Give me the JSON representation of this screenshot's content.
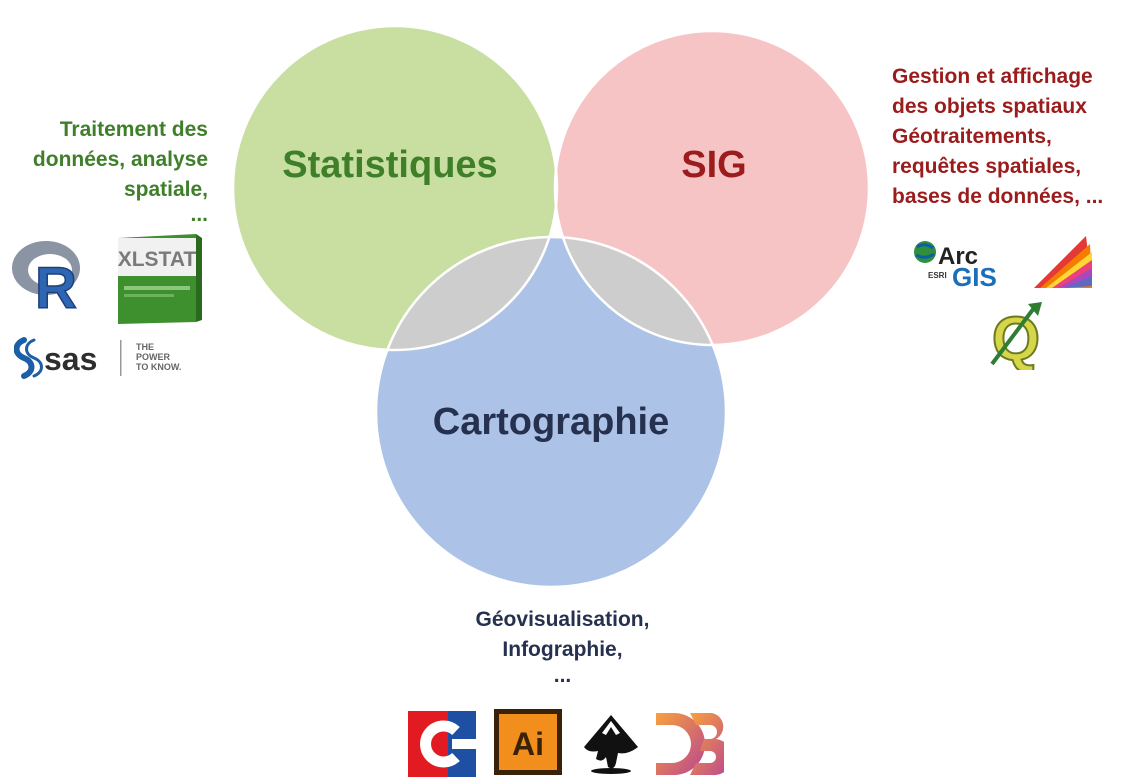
{
  "circles": {
    "stats": {
      "label": "Statistiques",
      "fill": "#c9dfa1",
      "text_color": "#3f7f2a"
    },
    "sig": {
      "label": "SIG",
      "fill": "#f7c4c6",
      "text_color": "#9b1c1c"
    },
    "carto": {
      "label": "Cartographie",
      "fill": "#acc3e7",
      "text_color": "#26304f"
    },
    "overlap_fill": "#cdcdcd"
  },
  "descriptions": {
    "stats": [
      "Traitement des",
      "données, analyse",
      "spatiale,",
      "..."
    ],
    "sig": [
      "Gestion et affichage",
      "des objets spatiaux",
      "Géotraitements,",
      "requêtes spatiales,",
      "bases de données, ..."
    ],
    "carto": [
      "Géovisualisation,",
      "Infographie,",
      "..."
    ]
  },
  "logos": {
    "r": {
      "icon": "r-logo-icon",
      "text": "R"
    },
    "xlstat": {
      "icon": "xlstat-box-icon",
      "text": "XLSTAT"
    },
    "sas": {
      "icon": "sas-logo-icon",
      "text": "sas",
      "tagline": [
        "THE",
        "POWER",
        "TO KNOW."
      ]
    },
    "arcgis": {
      "icon": "arcgis-logo-icon",
      "text_top": "Arc",
      "text_bottom": "GIS",
      "vendor": "ESRI"
    },
    "spectrum": {
      "icon": "rainbow-fan-icon"
    },
    "qgis": {
      "icon": "qgis-logo-icon",
      "text": "Q"
    },
    "coreldraw": {
      "icon": "corel-logo-icon"
    },
    "illustrator": {
      "icon": "illustrator-logo-icon",
      "text": "Ai"
    },
    "inkscape": {
      "icon": "inkscape-logo-icon"
    },
    "d3": {
      "icon": "d3-logo-icon"
    }
  }
}
